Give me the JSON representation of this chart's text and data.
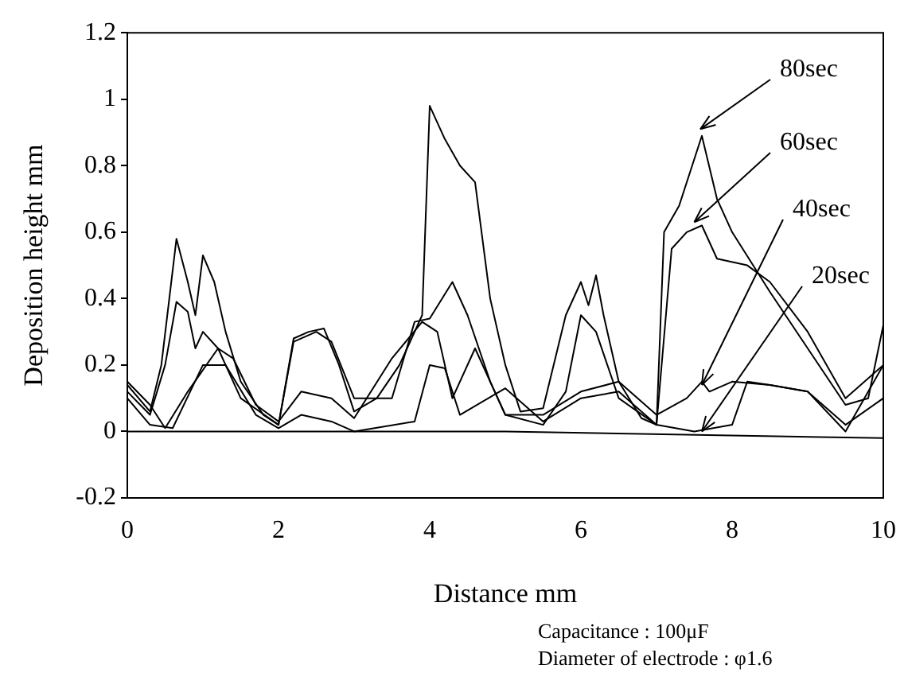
{
  "chart_data": {
    "type": "line",
    "xlabel": "Distance mm",
    "ylabel": "Deposition height mm",
    "xlim": [
      0,
      10
    ],
    "xticks": [
      0,
      2,
      4,
      6,
      8,
      10
    ],
    "ylim": [
      -0.2,
      1.2
    ],
    "yticks": [
      -0.2,
      0,
      0.2,
      0.4,
      0.6,
      0.8,
      1,
      1.2
    ],
    "grid": false,
    "legend": false,
    "marker": "none",
    "line_style": "solid",
    "series": [
      {
        "color": "#000000",
        "x": [
          0,
          0.3,
          0.45,
          0.65,
          0.8,
          0.9,
          1.0,
          1.15,
          1.3,
          1.5,
          1.8,
          2.0,
          2.2,
          2.4,
          2.6,
          2.8,
          3.0,
          3.3,
          3.6,
          3.9,
          4.0,
          4.2,
          4.4,
          4.6,
          4.8,
          5.0,
          5.2,
          5.5,
          5.8,
          6.0,
          6.1,
          6.2,
          6.3,
          6.5,
          6.8,
          7.0,
          7.1,
          7.3,
          7.6,
          7.8,
          8.0,
          8.5,
          9.0,
          9.5,
          9.8,
          10
        ],
        "values": [
          0.14,
          0.06,
          0.2,
          0.58,
          0.45,
          0.35,
          0.53,
          0.45,
          0.3,
          0.15,
          0.05,
          0.02,
          0.28,
          0.3,
          0.31,
          0.2,
          0.06,
          0.1,
          0.2,
          0.35,
          0.98,
          0.88,
          0.8,
          0.75,
          0.4,
          0.2,
          0.06,
          0.07,
          0.35,
          0.45,
          0.38,
          0.47,
          0.35,
          0.15,
          0.04,
          0.02,
          0.6,
          0.68,
          0.89,
          0.7,
          0.6,
          0.42,
          0.25,
          0.08,
          0.1,
          0.32
        ]
      },
      {
        "color": "#000000",
        "x": [
          0,
          0.3,
          0.5,
          0.65,
          0.8,
          0.9,
          1.0,
          1.2,
          1.5,
          2.0,
          2.2,
          2.5,
          2.7,
          3.0,
          3.5,
          3.8,
          4.0,
          4.3,
          4.5,
          4.8,
          5.0,
          5.5,
          5.8,
          6.0,
          6.2,
          6.5,
          7.0,
          7.2,
          7.4,
          7.6,
          7.8,
          8.2,
          8.5,
          9.0,
          9.5,
          10
        ],
        "values": [
          0.12,
          0.05,
          0.2,
          0.39,
          0.36,
          0.25,
          0.3,
          0.25,
          0.1,
          0.02,
          0.27,
          0.3,
          0.27,
          0.1,
          0.1,
          0.33,
          0.34,
          0.45,
          0.35,
          0.15,
          0.05,
          0.02,
          0.12,
          0.35,
          0.3,
          0.1,
          0.02,
          0.55,
          0.6,
          0.62,
          0.52,
          0.5,
          0.45,
          0.3,
          0.1,
          0.2
        ]
      },
      {
        "color": "#000000",
        "x": [
          0,
          0.3,
          0.5,
          0.8,
          1.2,
          1.4,
          1.7,
          2.0,
          2.3,
          2.7,
          3.0,
          3.5,
          3.9,
          4.1,
          4.3,
          4.6,
          5.0,
          5.5,
          6.0,
          6.5,
          7.0,
          7.4,
          7.6,
          7.7,
          8.0,
          8.5,
          9.0,
          9.5,
          10
        ],
        "values": [
          0.15,
          0.08,
          0.01,
          0.12,
          0.25,
          0.22,
          0.08,
          0.03,
          0.12,
          0.1,
          0.04,
          0.22,
          0.33,
          0.3,
          0.1,
          0.25,
          0.05,
          0.05,
          0.12,
          0.15,
          0.05,
          0.1,
          0.15,
          0.12,
          0.15,
          0.14,
          0.12,
          0.02,
          0.1
        ]
      },
      {
        "color": "#000000",
        "x": [
          0,
          0.3,
          0.6,
          1.0,
          1.3,
          1.7,
          2.0,
          2.3,
          2.7,
          3.0,
          3.8,
          4.0,
          4.2,
          4.4,
          5.0,
          5.5,
          6.0,
          6.5,
          7.0,
          7.5,
          8.0,
          8.2,
          8.5,
          9.0,
          9.5,
          10
        ],
        "values": [
          0.1,
          0.02,
          0.01,
          0.2,
          0.2,
          0.05,
          0.01,
          0.05,
          0.03,
          0.0,
          0.03,
          0.2,
          0.19,
          0.05,
          0.13,
          0.03,
          0.1,
          0.12,
          0.02,
          0.0,
          0.02,
          0.15,
          0.14,
          0.12,
          0.0,
          0.2
        ]
      },
      {
        "color": "#000000",
        "x": [
          0,
          5,
          10
        ],
        "values": [
          0,
          0,
          -0.02
        ]
      }
    ],
    "annotations": [
      {
        "text": "80sec",
        "x": 7.58,
        "y": 0.91
      },
      {
        "text": "60sec",
        "x": 7.5,
        "y": 0.63
      },
      {
        "text": "40sec",
        "x": 7.6,
        "y": 0.14
      },
      {
        "text": "20sec",
        "x": 7.6,
        "y": 0
      },
      "Capacitance : 100μF",
      "Diameter of electrode : φ1.6"
    ]
  }
}
